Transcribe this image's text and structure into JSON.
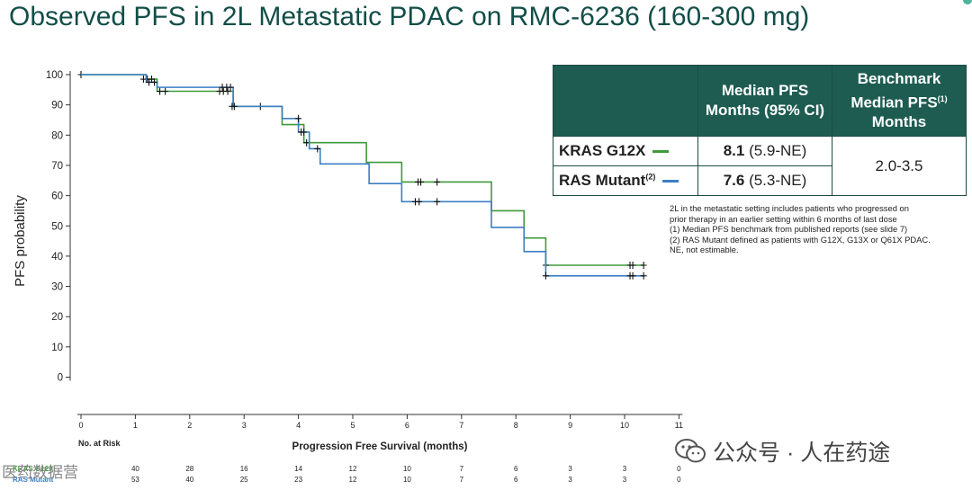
{
  "title": "Observed PFS in 2L Metastatic PDAC on RMC-6236 (160-300 mg)",
  "chart_data": {
    "type": "line",
    "title": "",
    "xlabel": "Progression Free Survival (months)",
    "ylabel": "PFS probability",
    "xlim": [
      0,
      11
    ],
    "ylim": [
      0,
      100
    ],
    "x_ticks": [
      0,
      1,
      2,
      3,
      4,
      5,
      6,
      7,
      8,
      9,
      10,
      11
    ],
    "y_ticks": [
      0,
      10,
      20,
      30,
      40,
      50,
      60,
      70,
      80,
      90,
      100
    ],
    "series": [
      {
        "name": "KRAS G12X",
        "color": "#3f9a3a",
        "steps": [
          [
            0,
            100
          ],
          [
            1.2,
            98.5
          ],
          [
            1.4,
            94.5
          ],
          [
            2.8,
            89.5
          ],
          [
            3.7,
            83.5
          ],
          [
            4.1,
            77.5
          ],
          [
            5.25,
            71
          ],
          [
            5.9,
            64.5
          ],
          [
            7.55,
            55
          ],
          [
            8.15,
            46
          ],
          [
            8.55,
            37
          ],
          [
            10.35,
            37
          ]
        ],
        "censors": [
          [
            0,
            100
          ],
          [
            1.15,
            98.5
          ],
          [
            1.22,
            98.5
          ],
          [
            1.3,
            98.5
          ],
          [
            1.45,
            94.5
          ],
          [
            1.55,
            94.5
          ],
          [
            2.55,
            94.5
          ],
          [
            2.62,
            94.5
          ],
          [
            2.7,
            94.5
          ],
          [
            2.78,
            89.5
          ],
          [
            3.3,
            89.5
          ],
          [
            4.15,
            77.5
          ],
          [
            6.2,
            64.5
          ],
          [
            6.25,
            64.5
          ],
          [
            6.55,
            64.5
          ],
          [
            8.55,
            37
          ],
          [
            10.1,
            37
          ],
          [
            10.15,
            37
          ],
          [
            10.35,
            37
          ]
        ]
      },
      {
        "name": "RAS Mutant",
        "color": "#3b7fc4",
        "steps": [
          [
            0,
            100
          ],
          [
            1.2,
            97.5
          ],
          [
            1.4,
            95.8
          ],
          [
            2.8,
            89.5
          ],
          [
            3.7,
            85.5
          ],
          [
            4.0,
            81
          ],
          [
            4.2,
            75.5
          ],
          [
            4.4,
            70.5
          ],
          [
            5.3,
            64
          ],
          [
            5.9,
            58
          ],
          [
            7.55,
            49.5
          ],
          [
            8.15,
            41.5
          ],
          [
            8.55,
            33.5
          ],
          [
            10.35,
            33.5
          ]
        ],
        "censors": [
          [
            1.25,
            97.5
          ],
          [
            1.35,
            97.5
          ],
          [
            2.6,
            95.8
          ],
          [
            2.68,
            95.8
          ],
          [
            2.75,
            95.8
          ],
          [
            2.82,
            89.5
          ],
          [
            4.0,
            85.5
          ],
          [
            4.05,
            81
          ],
          [
            4.1,
            81
          ],
          [
            4.35,
            75.5
          ],
          [
            6.15,
            58
          ],
          [
            6.22,
            58
          ],
          [
            6.55,
            58
          ],
          [
            8.55,
            33.5
          ],
          [
            10.1,
            33.5
          ],
          [
            10.15,
            33.5
          ],
          [
            10.35,
            33.5
          ]
        ]
      }
    ],
    "at_risk": {
      "label": "No. at Risk",
      "times": [
        0,
        1,
        2,
        3,
        4,
        5,
        6,
        7,
        8,
        9,
        10,
        11
      ],
      "rows": [
        {
          "name": "KRAS G12X",
          "values": [
            "",
            "40",
            "28",
            "16",
            "14",
            "12",
            "10",
            "7",
            "6",
            "3",
            "3",
            "0"
          ]
        },
        {
          "name": "RAS Mutant",
          "values": [
            "",
            "53",
            "40",
            "25",
            "23",
            "12",
            "10",
            "7",
            "6",
            "3",
            "3",
            "0"
          ]
        }
      ]
    }
  },
  "table": {
    "header_col2": "Median PFS Months (95% CI)",
    "header_col3": "Benchmark Median PFS",
    "header_col3_sup": "(1)",
    "header_col3_b": "Months",
    "rows": [
      {
        "label": "KRAS G12X",
        "label_sup": "",
        "color": "#3f9a3a",
        "value_bold": "8.1",
        "value_ci": "(5.9-NE)"
      },
      {
        "label": "RAS Mutant",
        "label_sup": "(2)",
        "color": "#3b7fc4",
        "value_bold": "7.6",
        "value_ci": "(5.3-NE)"
      }
    ],
    "benchmark": "2.0-3.5"
  },
  "footnotes": [
    "2L in the metastatic setting includes patients who progressed on",
    "prior therapy in an earlier setting within 6 months of last dose",
    "(1) Median PFS benchmark from published reports (see slide 7)",
    "(2) RAS Mutant defined as patients with G12X, G13X or Q61X PDAC.",
    "NE, not estimable."
  ],
  "watermark": "公众号 · 人在药途",
  "watermark_left": "医药数据营"
}
